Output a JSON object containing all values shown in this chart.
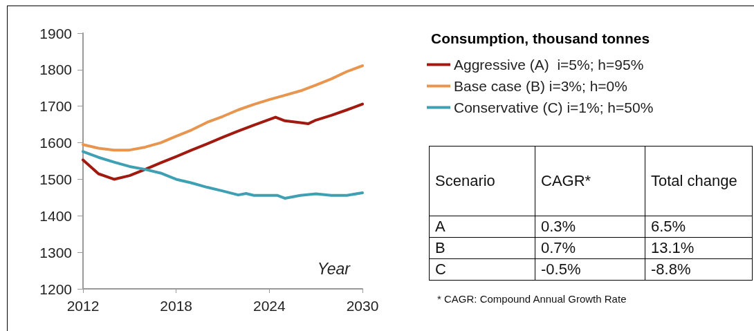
{
  "chart_data": [
    {
      "type": "line",
      "xlabel": "Year",
      "legend_title": "Consumption, thousand tonnes",
      "xlim": [
        2012,
        2030
      ],
      "xticks": [
        2012,
        2018,
        2024,
        2030
      ],
      "ylim": [
        1200,
        1900
      ],
      "yticks": [
        1200,
        1300,
        1400,
        1500,
        1600,
        1700,
        1800,
        1900
      ],
      "grid": false,
      "legend": "right",
      "marker": "none",
      "line_style": "solid",
      "series": [
        {
          "name": "Aggressive (A)  i=5%; h=95%",
          "color": "#a01a10",
          "x": [
            2012,
            2013,
            2014,
            2015,
            2016,
            2017,
            2018,
            2019,
            2020,
            2021,
            2022,
            2023,
            2024.4,
            2025,
            2026,
            2026.5,
            2027,
            2028,
            2029,
            2030
          ],
          "values": [
            1553,
            1515,
            1500,
            1510,
            1527,
            1545,
            1562,
            1580,
            1597,
            1615,
            1632,
            1648,
            1670,
            1660,
            1655,
            1652,
            1662,
            1675,
            1690,
            1706
          ]
        },
        {
          "name": "Base case (B) i=3%; h=0%",
          "color": "#e8964f",
          "x": [
            2012,
            2013,
            2014,
            2015,
            2016,
            2017,
            2018,
            2019,
            2020,
            2021,
            2022,
            2023,
            2024,
            2025,
            2026,
            2027,
            2028,
            2029,
            2030
          ],
          "values": [
            1595,
            1585,
            1580,
            1580,
            1588,
            1600,
            1618,
            1635,
            1656,
            1672,
            1690,
            1705,
            1718,
            1730,
            1742,
            1758,
            1775,
            1795,
            1811
          ]
        },
        {
          "name": "Conservative (C) i=1%; h=50%",
          "color": "#3fa0b4",
          "x": [
            2012,
            2013,
            2014,
            2015,
            2016,
            2017,
            2018,
            2019,
            2020,
            2021,
            2022,
            2022.5,
            2023,
            2024.5,
            2025,
            2026,
            2027,
            2028,
            2029,
            2030
          ],
          "values": [
            1576,
            1560,
            1547,
            1535,
            1527,
            1517,
            1500,
            1490,
            1478,
            1468,
            1457,
            1461,
            1456,
            1456,
            1448,
            1456,
            1460,
            1456,
            1456,
            1463
          ]
        }
      ]
    },
    {
      "type": "other",
      "categories": [
        "Scenario",
        "CAGR*",
        "Total change"
      ],
      "cell_labels": [
        [
          "A",
          "0.3%",
          "6.5%"
        ],
        [
          "B",
          "0.7%",
          "13.1%"
        ],
        [
          "C",
          "-0.5%",
          "-8.8%"
        ]
      ],
      "annotations": [
        "* CAGR: Compound Annual Growth Rate"
      ]
    }
  ]
}
